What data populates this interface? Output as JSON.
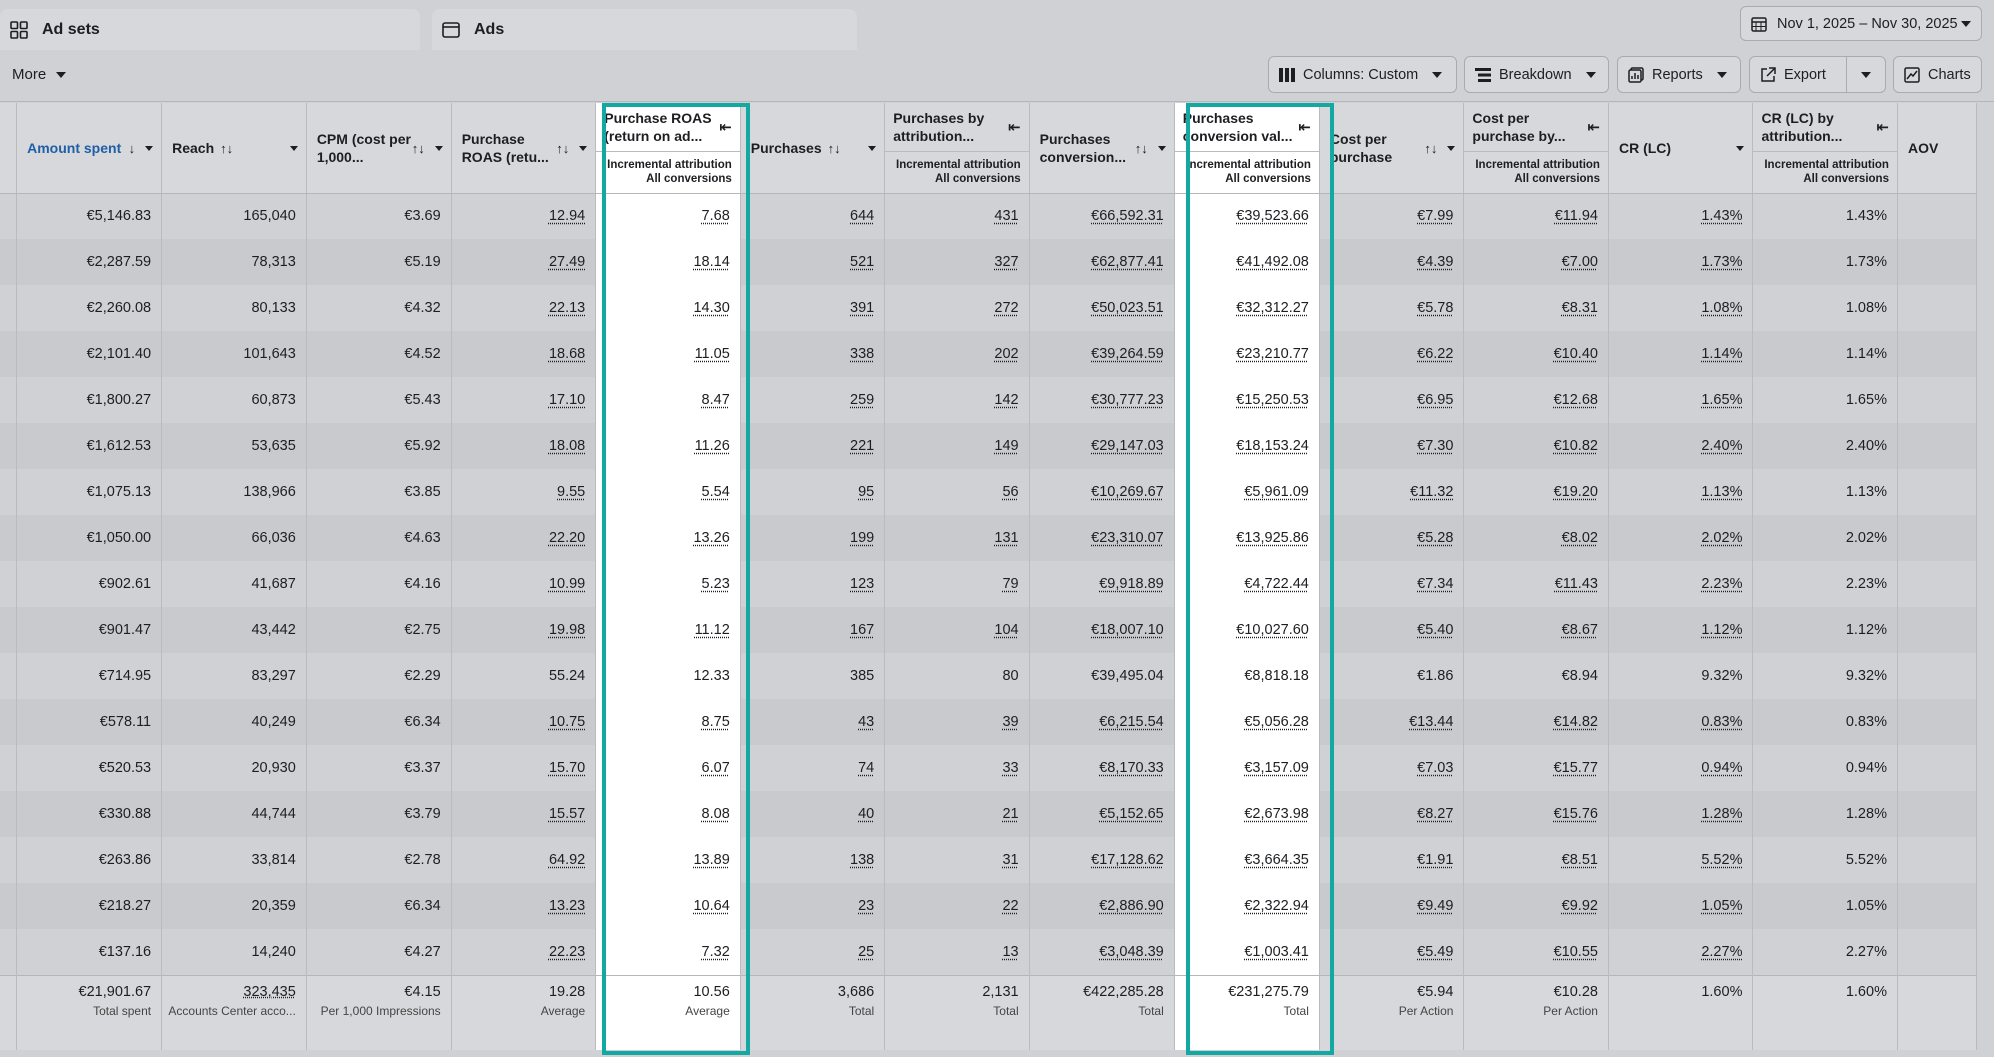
{
  "tabs": [
    {
      "label": "Ad sets",
      "icon": "grid-icon"
    },
    {
      "label": "Ads",
      "icon": "ad-icon"
    }
  ],
  "date_range": "Nov 1, 2025 – Nov 30, 2025",
  "toolbar": {
    "more": "More",
    "columns": "Columns: Custom",
    "breakdown": "Breakdown",
    "reports": "Reports",
    "export": "Export",
    "charts": "Charts"
  },
  "columns": [
    {
      "key": "spent",
      "label": "Amount spent",
      "sort": "↓"
    },
    {
      "key": "reach",
      "label": "Reach",
      "sort": "↑↓"
    },
    {
      "key": "cpm",
      "label": "CPM (cost per 1,000...",
      "sort": "↑↓"
    },
    {
      "key": "roas",
      "label": "Purchase ROAS (retu...",
      "sort": "↑↓"
    },
    {
      "key": "roas_attr",
      "label": "Purchase ROAS (return on ad...",
      "sub1": "Incremental attribution",
      "sub2": "All conversions"
    },
    {
      "key": "purchases",
      "label": "Purchases",
      "sort": "↑↓"
    },
    {
      "key": "purch_attr",
      "label": "Purchases by attribution...",
      "sub1": "Incremental attribution",
      "sub2": "All conversions"
    },
    {
      "key": "conv_val",
      "label": "Purchases conversion...",
      "sort": "↑↓"
    },
    {
      "key": "conv_val_attr",
      "label": "Purchases conversion val...",
      "sub1": "Incremental attribution",
      "sub2": "All conversions"
    },
    {
      "key": "cpp",
      "label": "Cost per purchase",
      "sort": "↑↓"
    },
    {
      "key": "cpp_attr",
      "label": "Cost per purchase by...",
      "sub1": "Incremental attribution",
      "sub2": "All conversions"
    },
    {
      "key": "cr",
      "label": "CR (LC)"
    },
    {
      "key": "cr_attr",
      "label": "CR (LC) by attribution...",
      "sub1": "Incremental attribution",
      "sub2": "All conversions"
    },
    {
      "key": "aov",
      "label": "AOV"
    }
  ],
  "rows": [
    [
      "€5,146.83",
      "165,040",
      "€3.69",
      "12.94",
      "7.68",
      "644",
      "431",
      "€66,592.31",
      "€39,523.66",
      "€7.99",
      "€11.94",
      "1.43%",
      "1.43%"
    ],
    [
      "€2,287.59",
      "78,313",
      "€5.19",
      "27.49",
      "18.14",
      "521",
      "327",
      "€62,877.41",
      "€41,492.08",
      "€4.39",
      "€7.00",
      "1.73%",
      "1.73%"
    ],
    [
      "€2,260.08",
      "80,133",
      "€4.32",
      "22.13",
      "14.30",
      "391",
      "272",
      "€50,023.51",
      "€32,312.27",
      "€5.78",
      "€8.31",
      "1.08%",
      "1.08%"
    ],
    [
      "€2,101.40",
      "101,643",
      "€4.52",
      "18.68",
      "11.05",
      "338",
      "202",
      "€39,264.59",
      "€23,210.77",
      "€6.22",
      "€10.40",
      "1.14%",
      "1.14%"
    ],
    [
      "€1,800.27",
      "60,873",
      "€5.43",
      "17.10",
      "8.47",
      "259",
      "142",
      "€30,777.23",
      "€15,250.53",
      "€6.95",
      "€12.68",
      "1.65%",
      "1.65%"
    ],
    [
      "€1,612.53",
      "53,635",
      "€5.92",
      "18.08",
      "11.26",
      "221",
      "149",
      "€29,147.03",
      "€18,153.24",
      "€7.30",
      "€10.82",
      "2.40%",
      "2.40%"
    ],
    [
      "€1,075.13",
      "138,966",
      "€3.85",
      "9.55",
      "5.54",
      "95",
      "56",
      "€10,269.67",
      "€5,961.09",
      "€11.32",
      "€19.20",
      "1.13%",
      "1.13%"
    ],
    [
      "€1,050.00",
      "66,036",
      "€4.63",
      "22.20",
      "13.26",
      "199",
      "131",
      "€23,310.07",
      "€13,925.86",
      "€5.28",
      "€8.02",
      "2.02%",
      "2.02%"
    ],
    [
      "€902.61",
      "41,687",
      "€4.16",
      "10.99",
      "5.23",
      "123",
      "79",
      "€9,918.89",
      "€4,722.44",
      "€7.34",
      "€11.43",
      "2.23%",
      "2.23%"
    ],
    [
      "€901.47",
      "43,442",
      "€2.75",
      "19.98",
      "11.12",
      "167",
      "104",
      "€18,007.10",
      "€10,027.60",
      "€5.40",
      "€8.67",
      "1.12%",
      "1.12%"
    ],
    [
      "€714.95",
      "83,297",
      "€2.29",
      "55.24",
      "12.33",
      "385",
      "80",
      "€39,495.04",
      "€8,818.18",
      "€1.86",
      "€8.94",
      "9.32%",
      "9.32%"
    ],
    [
      "€578.11",
      "40,249",
      "€6.34",
      "10.75",
      "8.75",
      "43",
      "39",
      "€6,215.54",
      "€5,056.28",
      "€13.44",
      "€14.82",
      "0.83%",
      "0.83%"
    ],
    [
      "€520.53",
      "20,930",
      "€3.37",
      "15.70",
      "6.07",
      "74",
      "33",
      "€8,170.33",
      "€3,157.09",
      "€7.03",
      "€15.77",
      "0.94%",
      "0.94%"
    ],
    [
      "€330.88",
      "44,744",
      "€3.79",
      "15.57",
      "8.08",
      "40",
      "21",
      "€5,152.65",
      "€2,673.98",
      "€8.27",
      "€15.76",
      "1.28%",
      "1.28%"
    ],
    [
      "€263.86",
      "33,814",
      "€2.78",
      "64.92",
      "13.89",
      "138",
      "31",
      "€17,128.62",
      "€3,664.35",
      "€1.91",
      "€8.51",
      "5.52%",
      "5.52%"
    ],
    [
      "€218.27",
      "20,359",
      "€6.34",
      "13.23",
      "10.64",
      "23",
      "22",
      "€2,886.90",
      "€2,322.94",
      "€9.49",
      "€9.92",
      "1.05%",
      "1.05%"
    ],
    [
      "€137.16",
      "14,240",
      "€4.27",
      "22.23",
      "7.32",
      "25",
      "13",
      "€3,048.39",
      "€1,003.41",
      "€5.49",
      "€10.55",
      "2.27%",
      "2.27%"
    ]
  ],
  "underlined_rows": [
    0,
    1,
    2,
    3,
    4,
    5,
    6,
    7,
    8,
    9,
    11,
    12,
    13,
    14,
    15,
    16
  ],
  "totals": [
    {
      "v": "€21,901.67",
      "s": "Total spent"
    },
    {
      "v": "323,435",
      "s": "Accounts Center acco..."
    },
    {
      "v": "€4.15",
      "s": "Per 1,000 Impressions"
    },
    {
      "v": "19.28",
      "s": "Average"
    },
    {
      "v": "10.56",
      "s": "Average"
    },
    {
      "v": "3,686",
      "s": "Total"
    },
    {
      "v": "2,131",
      "s": "Total"
    },
    {
      "v": "€422,285.28",
      "s": "Total"
    },
    {
      "v": "€231,275.79",
      "s": "Total"
    },
    {
      "v": "€5.94",
      "s": "Per Action"
    },
    {
      "v": "€10.28",
      "s": "Per Action"
    },
    {
      "v": "1.60%",
      "s": ""
    },
    {
      "v": "1.60%",
      "s": ""
    }
  ],
  "highlight_color": "#13a8a1"
}
